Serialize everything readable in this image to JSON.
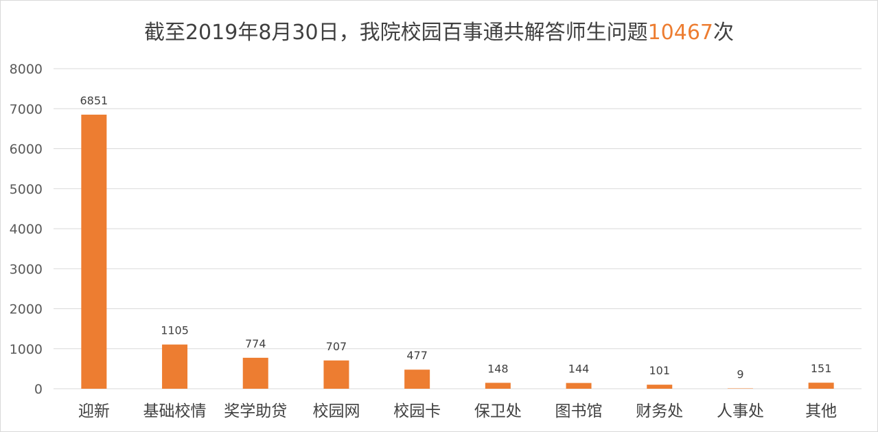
{
  "title": {
    "prefix": "截至2019年8月30日，我院校园百事通共解答师生问题",
    "highlight": "10467",
    "suffix": "次"
  },
  "colors": {
    "bar": "#ed7d31",
    "highlight": "#ed7d31",
    "grid": "#d9d9d9"
  },
  "chart_data": {
    "type": "bar",
    "categories": [
      "迎新",
      "基础校情",
      "奖学助贷",
      "校园网",
      "校园卡",
      "保卫处",
      "图书馆",
      "财务处",
      "人事处",
      "其他"
    ],
    "values": [
      6851,
      1105,
      774,
      707,
      477,
      148,
      144,
      101,
      9,
      151
    ],
    "ylim": [
      0,
      8000
    ],
    "yticks": [
      0,
      1000,
      2000,
      3000,
      4000,
      5000,
      6000,
      7000,
      8000
    ],
    "grid": true,
    "data_labels": true
  }
}
